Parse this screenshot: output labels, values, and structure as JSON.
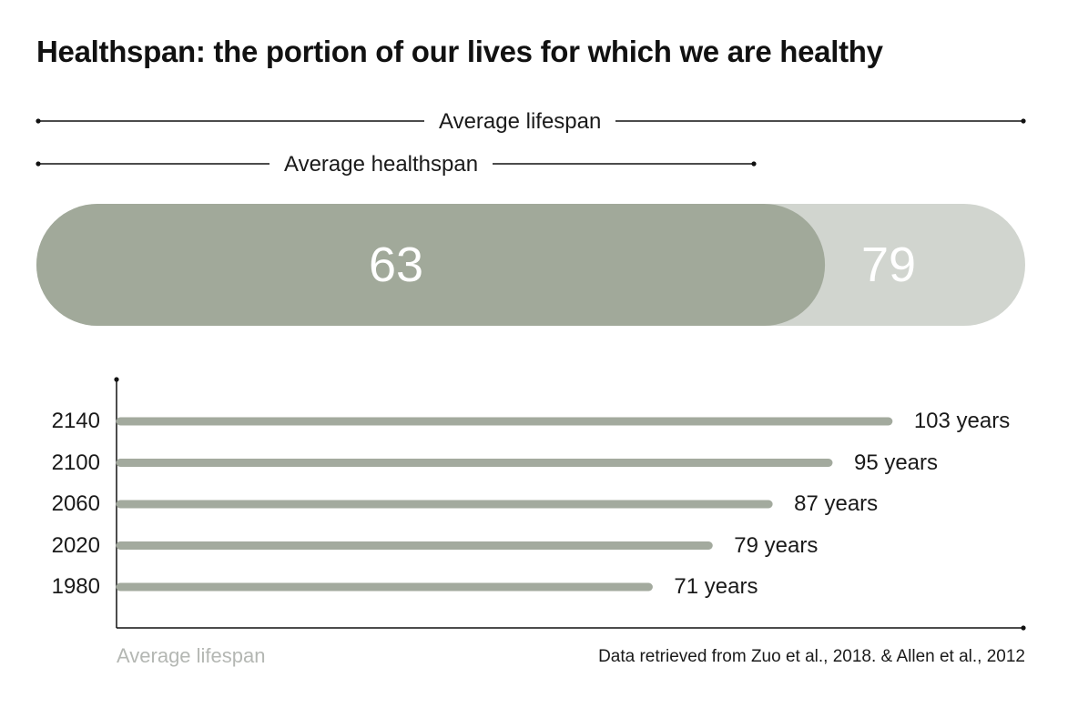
{
  "title": "Healthspan: the portion of our lives for which we are healthy",
  "summary": {
    "lifespan_label": "Average lifespan",
    "healthspan_label": "Average healthspan",
    "lifespan_value": 79,
    "healthspan_value": 63,
    "lifespan_text": "79",
    "healthspan_text": "63"
  },
  "colors": {
    "healthspan_fill": "#a1a99a",
    "lifespan_fill": "#d1d5cf",
    "bar_fill": "#a3aa9e",
    "axis": "#111111",
    "muted_text": "#b4b7b3"
  },
  "chart_data": {
    "type": "bar",
    "orientation": "horizontal",
    "categories": [
      "2140",
      "2100",
      "2060",
      "2020",
      "1980"
    ],
    "values": [
      103,
      95,
      87,
      79,
      71
    ],
    "value_labels": [
      "103 years",
      "95 years",
      "87 years",
      "79 years",
      "71 years"
    ],
    "xlabel": "Average lifespan",
    "ylabel": "",
    "xlim": [
      0,
      121
    ],
    "grid": false
  },
  "source": "Data retrieved from Zuo et al., 2018. & Allen et al., 2012"
}
